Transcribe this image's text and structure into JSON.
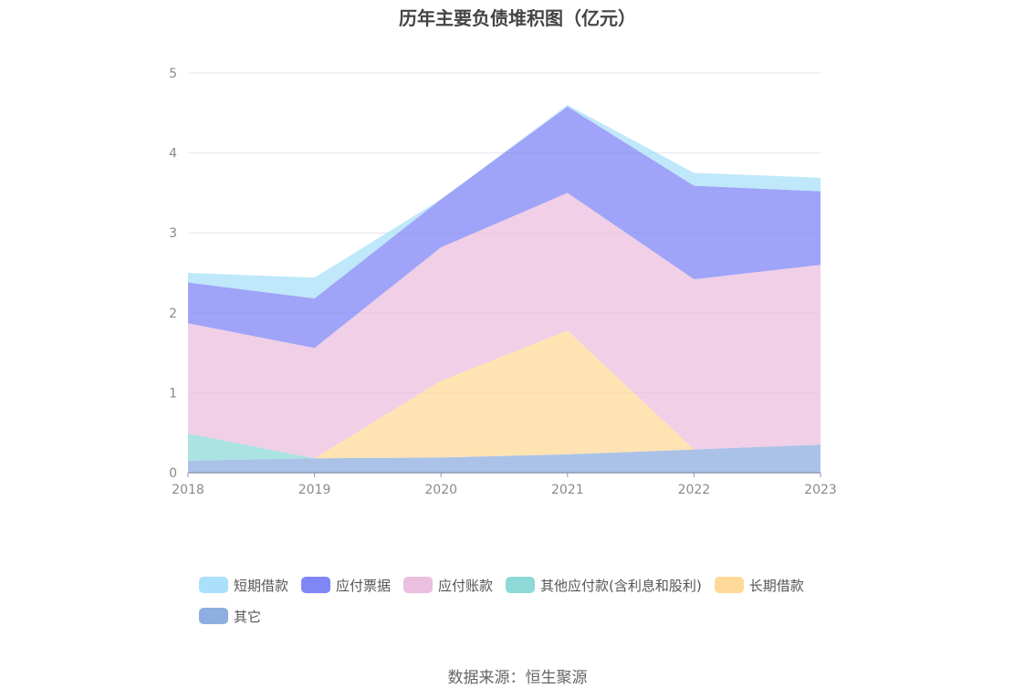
{
  "chart_data": {
    "type": "area",
    "stacked": true,
    "title": "历年主要负债堆积图（亿元）",
    "x": [
      "2018",
      "2019",
      "2020",
      "2021",
      "2022",
      "2023"
    ],
    "ylim": [
      0,
      5
    ],
    "yticks": [
      "0",
      "1",
      "2",
      "3",
      "4",
      "5"
    ],
    "grid": true,
    "legend_position": "bottom",
    "series": [
      {
        "name": "其它",
        "color": "#8eaee0",
        "values": [
          0.15,
          0.18,
          0.19,
          0.23,
          0.29,
          0.35
        ]
      },
      {
        "name": "长期借款",
        "color": "#ffd99a",
        "values": [
          0.0,
          0.0,
          0.96,
          1.55,
          0.0,
          0.0
        ]
      },
      {
        "name": "其他应付款(含利息和股利)",
        "color": "#8fd8d8",
        "values": [
          0.34,
          0.0,
          0.0,
          0.0,
          0.0,
          0.0
        ]
      },
      {
        "name": "应付账款",
        "color": "#ebbfdf",
        "values": [
          1.38,
          1.38,
          1.67,
          1.72,
          2.13,
          2.25
        ]
      },
      {
        "name": "应付票据",
        "color": "#7f86f5",
        "values": [
          0.51,
          0.62,
          0.6,
          1.08,
          1.17,
          0.92
        ]
      },
      {
        "name": "短期借款",
        "color": "#aae0fa",
        "values": [
          0.12,
          0.26,
          0.0,
          0.02,
          0.16,
          0.17
        ]
      }
    ]
  },
  "legend_order": [
    "短期借款",
    "应付票据",
    "应付账款",
    "其他应付款(含利息和股利)",
    "长期借款",
    "其它"
  ],
  "source": "数据来源：恒生聚源"
}
